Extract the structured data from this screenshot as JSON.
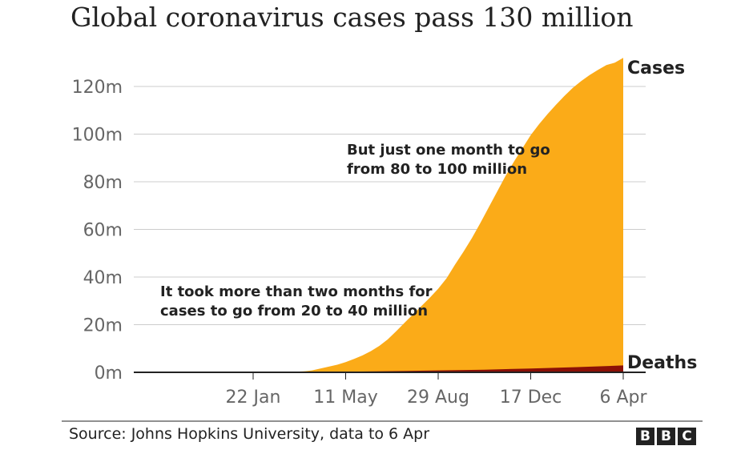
{
  "title": "Global coronavirus cases pass 130 million",
  "source": "Source: Johns Hopkins University, data to 6 Apr",
  "logo": [
    "B",
    "B",
    "C"
  ],
  "colors": {
    "cases": "#fbab18",
    "deaths": "#8b1006",
    "grid": "#cccccc",
    "text": "#222222",
    "axis_text": "#666666"
  },
  "chart_data": {
    "type": "area",
    "title": "Global coronavirus cases pass 130 million",
    "xlabel": "",
    "ylabel": "",
    "ylim": [
      0,
      130
    ],
    "y_unit": "million",
    "y_ticks": [
      0,
      20,
      40,
      60,
      80,
      100,
      120
    ],
    "y_tick_labels": [
      "0m",
      "20m",
      "40m",
      "60m",
      "80m",
      "100m",
      "120m"
    ],
    "x_range_days": [
      0,
      441
    ],
    "x_ticks": [
      {
        "day": 0,
        "label": "22 Jan"
      },
      {
        "day": 110,
        "label": "11 May"
      },
      {
        "day": 220,
        "label": "29 Aug"
      },
      {
        "day": 330,
        "label": "17 Dec"
      },
      {
        "day": 440,
        "label": "6 Apr"
      }
    ],
    "grid": true,
    "series": [
      {
        "name": "Cases",
        "label": "Cases",
        "x": [
          0,
          20,
          40,
          60,
          70,
          80,
          90,
          100,
          110,
          120,
          130,
          140,
          150,
          160,
          170,
          180,
          190,
          200,
          210,
          220,
          230,
          240,
          250,
          260,
          270,
          280,
          290,
          300,
          310,
          320,
          330,
          340,
          350,
          360,
          370,
          380,
          390,
          400,
          410,
          420,
          430,
          440
        ],
        "values": [
          0.0,
          0.05,
          0.08,
          0.4,
          0.8,
          1.6,
          2.4,
          3.2,
          4.3,
          5.6,
          7.1,
          8.9,
          11.1,
          13.8,
          17.2,
          20.8,
          24.3,
          27.8,
          31.3,
          35.1,
          39.5,
          45.2,
          50.6,
          56.3,
          62.6,
          69.2,
          75.8,
          82.4,
          88.4,
          94.0,
          99.6,
          104.2,
          108.4,
          112.3,
          116.0,
          119.4,
          122.3,
          124.8,
          127.0,
          129.0,
          130.0,
          132.0
        ]
      },
      {
        "name": "Deaths",
        "label": "Deaths",
        "x": [
          0,
          60,
          110,
          165,
          220,
          275,
          330,
          385,
          440
        ],
        "values": [
          0.0,
          0.01,
          0.25,
          0.5,
          0.8,
          1.1,
          1.6,
          2.2,
          2.9
        ]
      }
    ],
    "annotations": [
      {
        "line1": "But just one month to go",
        "line2": "from 80 to 100 million"
      },
      {
        "line1": "It took more than two months for",
        "line2": "cases to go from 20 to 40 million"
      }
    ]
  }
}
